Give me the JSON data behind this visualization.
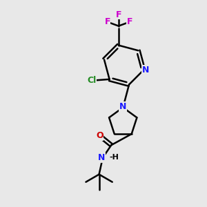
{
  "bg_color": "#e8e8e8",
  "bond_color": "#000000",
  "bond_width": 1.8,
  "atom_colors": {
    "N": "#1a1aff",
    "O": "#cc0000",
    "F": "#cc00cc",
    "Cl": "#228B22"
  },
  "figsize": [
    3.0,
    3.0
  ],
  "dpi": 100
}
